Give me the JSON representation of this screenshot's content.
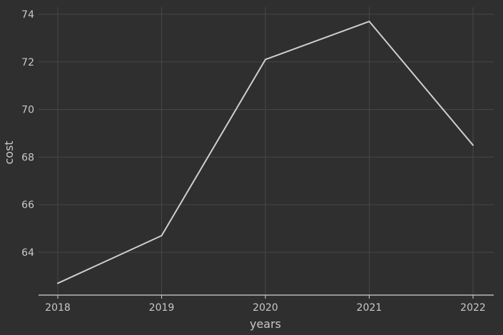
{
  "colors": {
    "background": "#2f2f2f",
    "grid": "#474747",
    "line": "#cfcfcf",
    "text": "#c8c8c8"
  },
  "chart_data": {
    "type": "line",
    "title": "",
    "xlabel": "years",
    "ylabel": "cost",
    "x": [
      "2018",
      "2019",
      "2020",
      "2021",
      "2022"
    ],
    "series": [
      {
        "values": [
          62.7,
          64.7,
          72.1,
          73.7,
          68.5
        ]
      }
    ],
    "ylim": [
      62.0,
      74.0
    ],
    "yticks": [
      64,
      66,
      68,
      70,
      72,
      74
    ],
    "grid": true,
    "legend": "none"
  }
}
